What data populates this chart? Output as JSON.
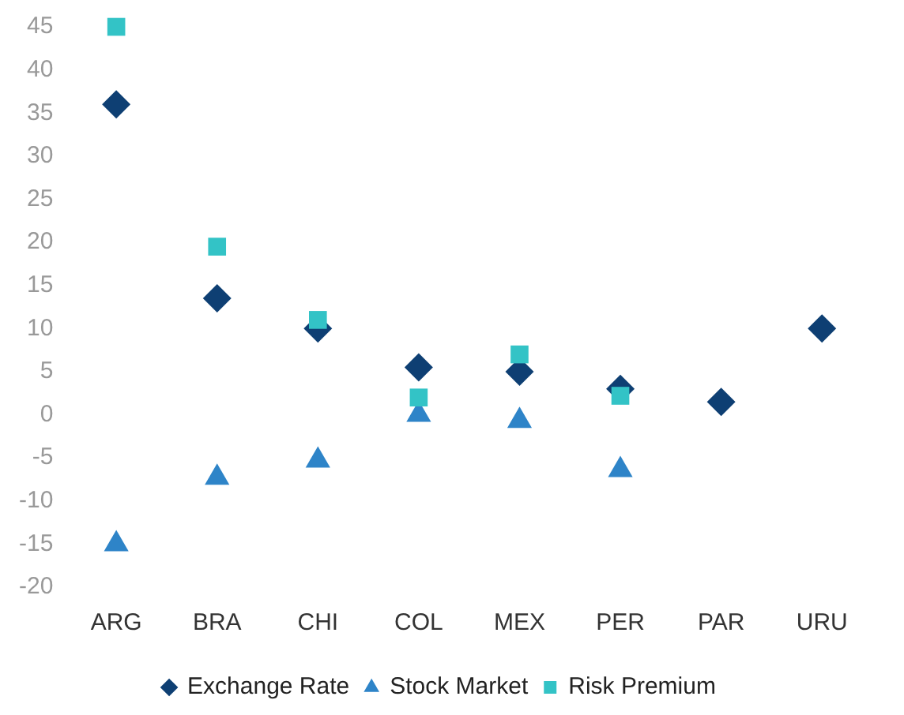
{
  "chart_data": {
    "type": "scatter",
    "categories": [
      "ARG",
      "BRA",
      "CHI",
      "COL",
      "MEX",
      "PER",
      "PAR",
      "URU"
    ],
    "series": [
      {
        "name": "Exchange Rate",
        "color": "#0e3f73",
        "marker": "diamond",
        "values": [
          36,
          13.5,
          10,
          5.5,
          5,
          3,
          1.5,
          10
        ]
      },
      {
        "name": "Stock Market",
        "color": "#2e84c8",
        "marker": "triangle",
        "values": [
          -15,
          -7.3,
          -5.3,
          0,
          -0.7,
          -6.4,
          null,
          null
        ]
      },
      {
        "name": "Risk Premium",
        "color": "#33c3c6",
        "marker": "square",
        "values": [
          45,
          19.5,
          11,
          2,
          7,
          2.2,
          null,
          null
        ]
      }
    ],
    "ylim": [
      -20,
      45
    ],
    "yticks": [
      -20,
      -15,
      -10,
      -5,
      0,
      5,
      10,
      15,
      20,
      25,
      30,
      35,
      40,
      45
    ],
    "grid": false,
    "legend": "bottom"
  }
}
